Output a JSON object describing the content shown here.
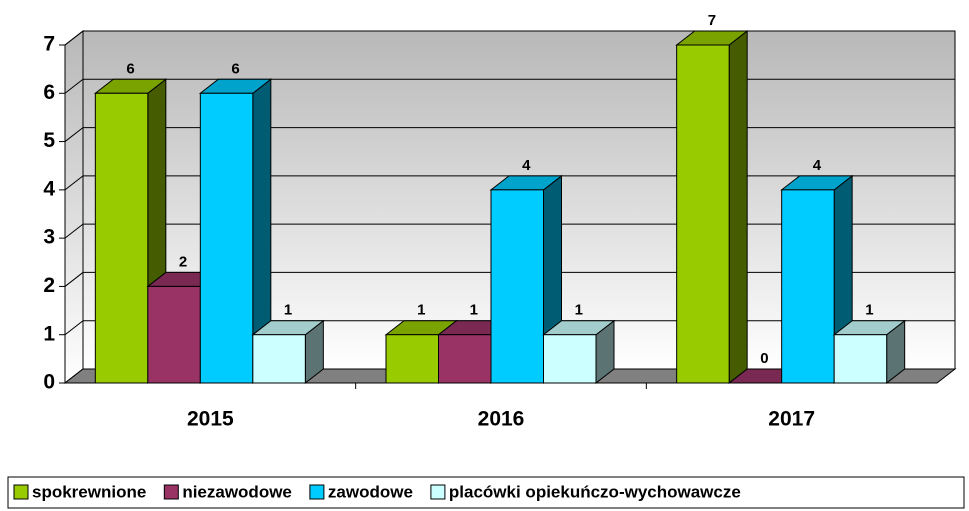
{
  "chart_data": {
    "type": "bar3d",
    "categories": [
      "2015",
      "2016",
      "2017"
    ],
    "series": [
      {
        "name": "spokrewnione",
        "color": "#99cc00",
        "values": [
          6,
          1,
          7
        ]
      },
      {
        "name": "niezawodowe",
        "color": "#993366",
        "values": [
          2,
          1,
          0
        ]
      },
      {
        "name": "zawodowe",
        "color": "#00ccff",
        "values": [
          6,
          4,
          4
        ]
      },
      {
        "name": "placówki opiekuńczo-wychowawcze",
        "color": "#ccffff",
        "values": [
          1,
          1,
          1
        ]
      }
    ],
    "ylim": [
      0,
      7
    ],
    "yticks": [
      0,
      1,
      2,
      3,
      4,
      5,
      6,
      7
    ],
    "grid": true,
    "legend": "bottom"
  }
}
